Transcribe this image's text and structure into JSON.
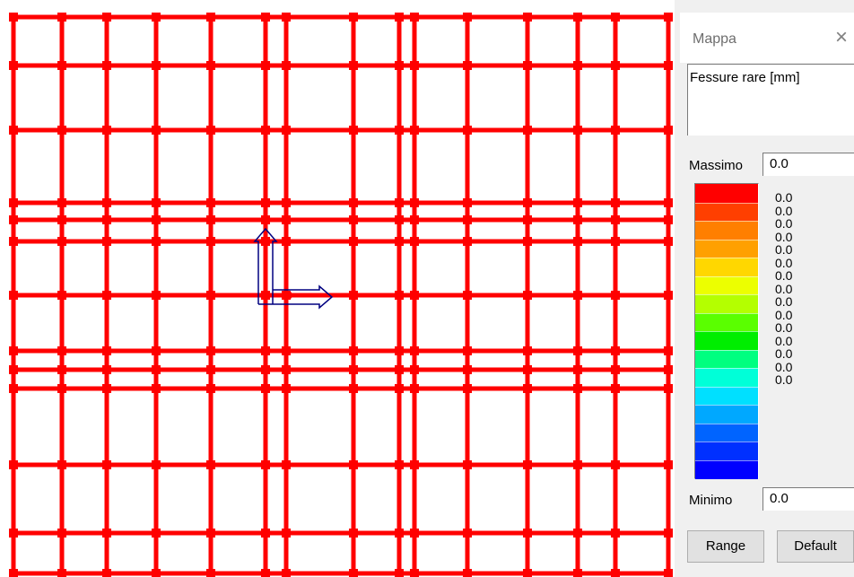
{
  "panel": {
    "title": "Mappa",
    "close_symbol": "×",
    "quantity_label": "Fessure rare [mm]",
    "max_label": "Massimo",
    "max_value": "0.0",
    "min_label": "Minimo",
    "min_value": "0.0",
    "range_button": "Range",
    "default_button": "Default"
  },
  "legend": {
    "colors": [
      "#ff0000",
      "#ff3f00",
      "#ff7f00",
      "#ffa000",
      "#ffd700",
      "#ecff00",
      "#b4ff00",
      "#5aff00",
      "#00ee00",
      "#00ff80",
      "#00ffd8",
      "#00e0ff",
      "#00a8ff",
      "#0064ff",
      "#0030ff",
      "#0000ff"
    ],
    "values": [
      "0.0",
      "0.0",
      "0.0",
      "0.0",
      "0.0",
      "0.0",
      "0.0",
      "0.0",
      "0.0",
      "0.0",
      "0.0",
      "0.0",
      "0.0",
      "0.0",
      "0.0"
    ]
  },
  "model": {
    "member_color": "#ff0000",
    "axis_color": "#000080",
    "icons": [
      "axis-x-arrow-icon",
      "axis-y-arrow-icon",
      "close-icon"
    ]
  }
}
